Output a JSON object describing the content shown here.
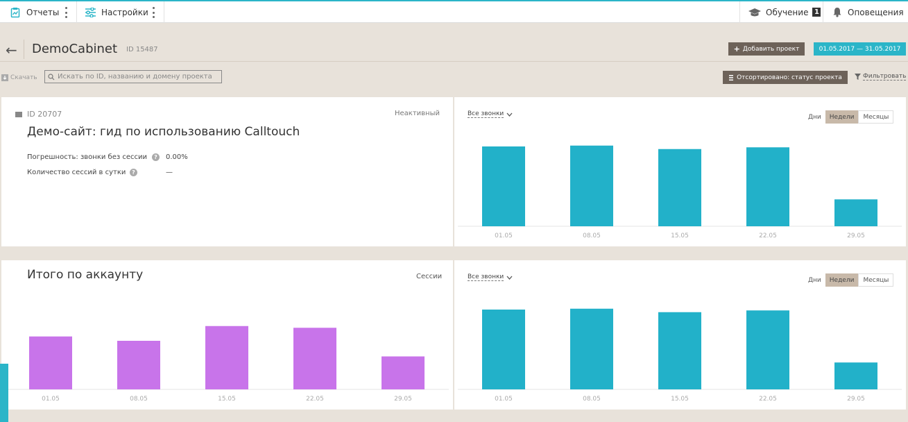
{
  "topbar": {
    "reports": "Отчеты",
    "settings": "Настройки",
    "learning": "Обучение",
    "learning_badge": "1",
    "notifications": "Оповещения",
    "accent_color": "#2bb5c8"
  },
  "header": {
    "back_icon": "←",
    "title": "DemoCabinet",
    "id": "ID 15487",
    "add_project": "Добавить проект",
    "date_range": "01.05.2017 — 31.05.2017"
  },
  "toolbar": {
    "download": "Скачать",
    "search_placeholder": "Искать по ID, названию и домену проекта",
    "sorted": "Отсортировано: статус проекта",
    "filter": "Фильтровать"
  },
  "project": {
    "id": "ID 20707",
    "status": "Неактивный",
    "name": "Демо-сайт: гид по использованию Calltouch",
    "error_label": "Погрешность: звонки без сессии",
    "error_value": "0.00%",
    "sessions_label": "Количество сессий в сутки",
    "sessions_value": "—",
    "calls_dropdown": "Все звонки",
    "period": {
      "days": "Дни",
      "weeks": "Недели",
      "months": "Месяцы"
    }
  },
  "account": {
    "title": "Итого по аккаунту",
    "metric": "Сессии",
    "calls_dropdown": "Все звонки",
    "period": {
      "days": "Дни",
      "weeks": "Недели",
      "months": "Месяцы"
    }
  },
  "chart_data": [
    {
      "type": "bar",
      "name": "project-calls",
      "categories": [
        "01.05",
        "08.05",
        "15.05",
        "22.05",
        "29.05"
      ],
      "values": [
        92,
        93,
        89,
        91,
        31
      ],
      "ylim": [
        0,
        100
      ],
      "color": "#22b1c9"
    },
    {
      "type": "bar",
      "name": "account-sessions",
      "categories": [
        "01.05",
        "08.05",
        "15.05",
        "22.05",
        "29.05"
      ],
      "values": [
        61,
        56,
        73,
        71,
        38
      ],
      "ylim": [
        0,
        100
      ],
      "color": "#c874ea"
    },
    {
      "type": "bar",
      "name": "account-calls",
      "categories": [
        "01.05",
        "08.05",
        "15.05",
        "22.05",
        "29.05"
      ],
      "values": [
        92,
        93,
        89,
        91,
        31
      ],
      "ylim": [
        0,
        100
      ],
      "color": "#22b1c9"
    }
  ]
}
